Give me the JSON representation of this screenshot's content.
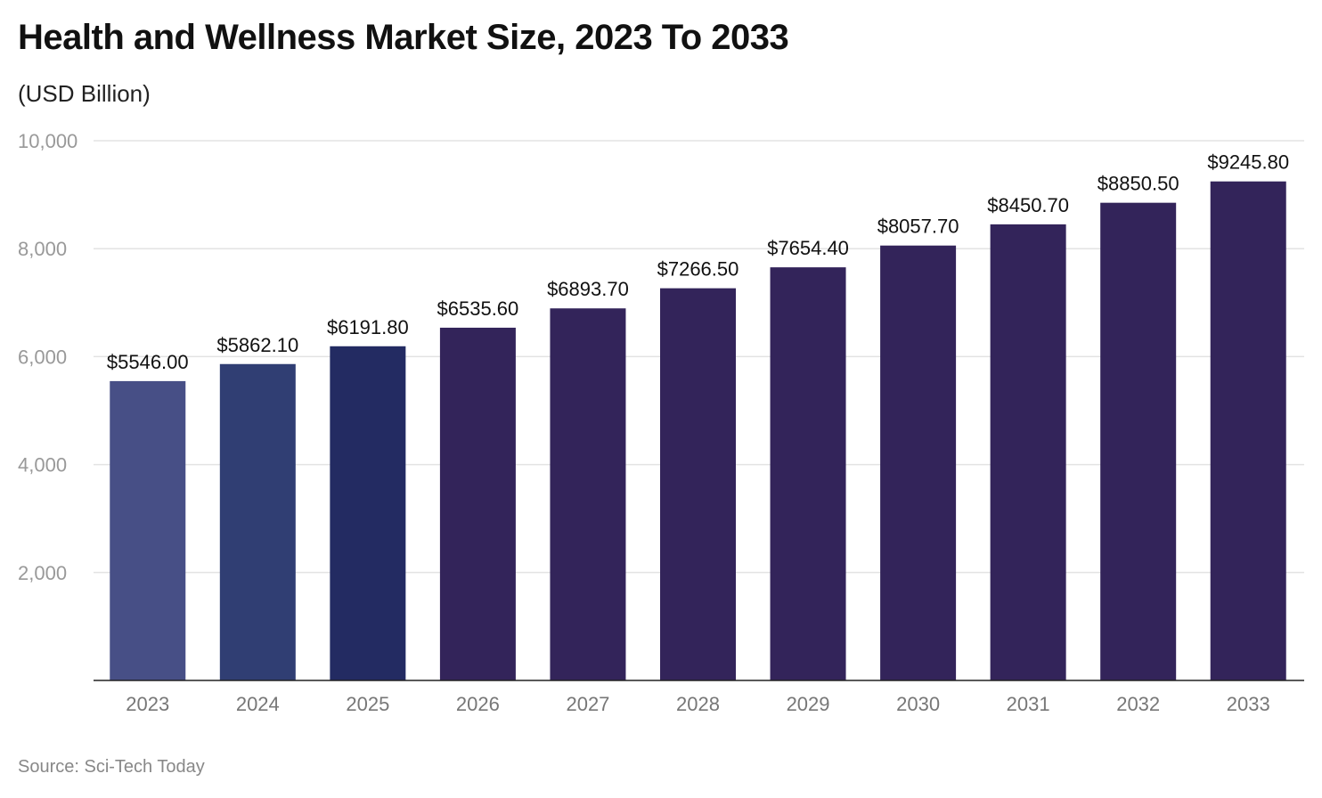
{
  "chart_data": {
    "type": "bar",
    "title": "Health and Wellness Market Size, 2023 To 2033",
    "subtitle": "(USD Billion)",
    "source": "Source: Sci-Tech Today",
    "categories": [
      "2023",
      "2024",
      "2025",
      "2026",
      "2027",
      "2028",
      "2029",
      "2030",
      "2031",
      "2032",
      "2033"
    ],
    "values": [
      5546.0,
      5862.1,
      6191.8,
      6535.6,
      6893.7,
      7266.5,
      7654.4,
      8057.7,
      8450.7,
      8850.5,
      9245.8
    ],
    "data_labels": [
      "$5546.00",
      "$5862.10",
      "$6191.80",
      "$6535.60",
      "$6893.70",
      "$7266.50",
      "$7654.40",
      "$8057.70",
      "$8450.70",
      "$8850.50",
      "$9245.80"
    ],
    "colors": [
      "#474f86",
      "#303e73",
      "#232b62",
      "#33245a",
      "#33245a",
      "#33245a",
      "#33245a",
      "#33245a",
      "#33245a",
      "#33245a",
      "#33245a"
    ],
    "ylim": [
      0,
      10000
    ],
    "yticks": [
      2000,
      4000,
      6000,
      8000,
      10000
    ],
    "ytick_labels": [
      "2,000",
      "4,000",
      "6,000",
      "8,000",
      "10,000"
    ],
    "grid": true,
    "xlabel": "",
    "ylabel": ""
  }
}
